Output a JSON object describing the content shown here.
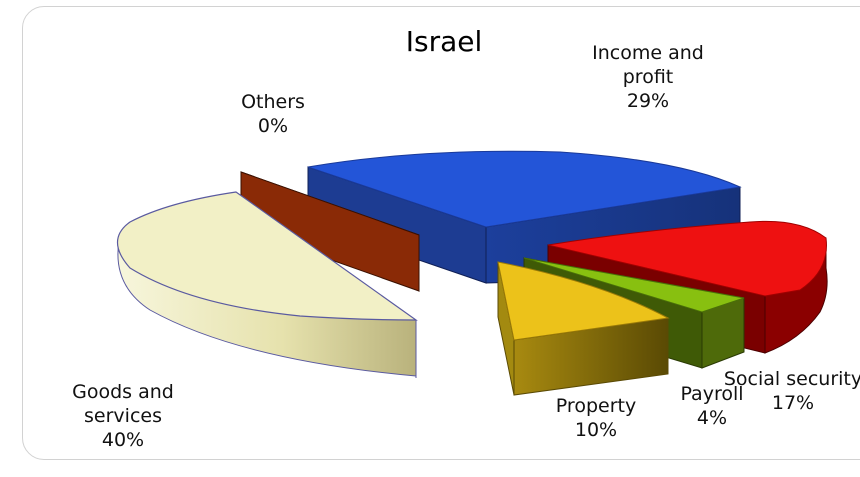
{
  "chart_data": {
    "type": "pie",
    "title": "Israel",
    "slices": [
      {
        "name": "Income and profit",
        "line1": "Income and",
        "line2": "profit",
        "pct_label": "29%",
        "value": 29,
        "color": "#2355d8"
      },
      {
        "name": "Social security",
        "line1": "Social security",
        "line2": "",
        "pct_label": "17%",
        "value": 17,
        "color": "#ee1111"
      },
      {
        "name": "Payroll",
        "line1": "Payroll",
        "line2": "",
        "pct_label": "4%",
        "value": 4,
        "color": "#88c010"
      },
      {
        "name": "Property",
        "line1": "Property",
        "line2": "",
        "pct_label": "10%",
        "value": 10,
        "color": "#ecc21a"
      },
      {
        "name": "Goods and services",
        "line1": "Goods and",
        "line2": "services",
        "pct_label": "40%",
        "value": 40,
        "color": "#f2f0c6"
      },
      {
        "name": "Others",
        "line1": "Others",
        "line2": "",
        "pct_label": "0%",
        "value": 0,
        "color": "#8a2a06"
      }
    ]
  }
}
